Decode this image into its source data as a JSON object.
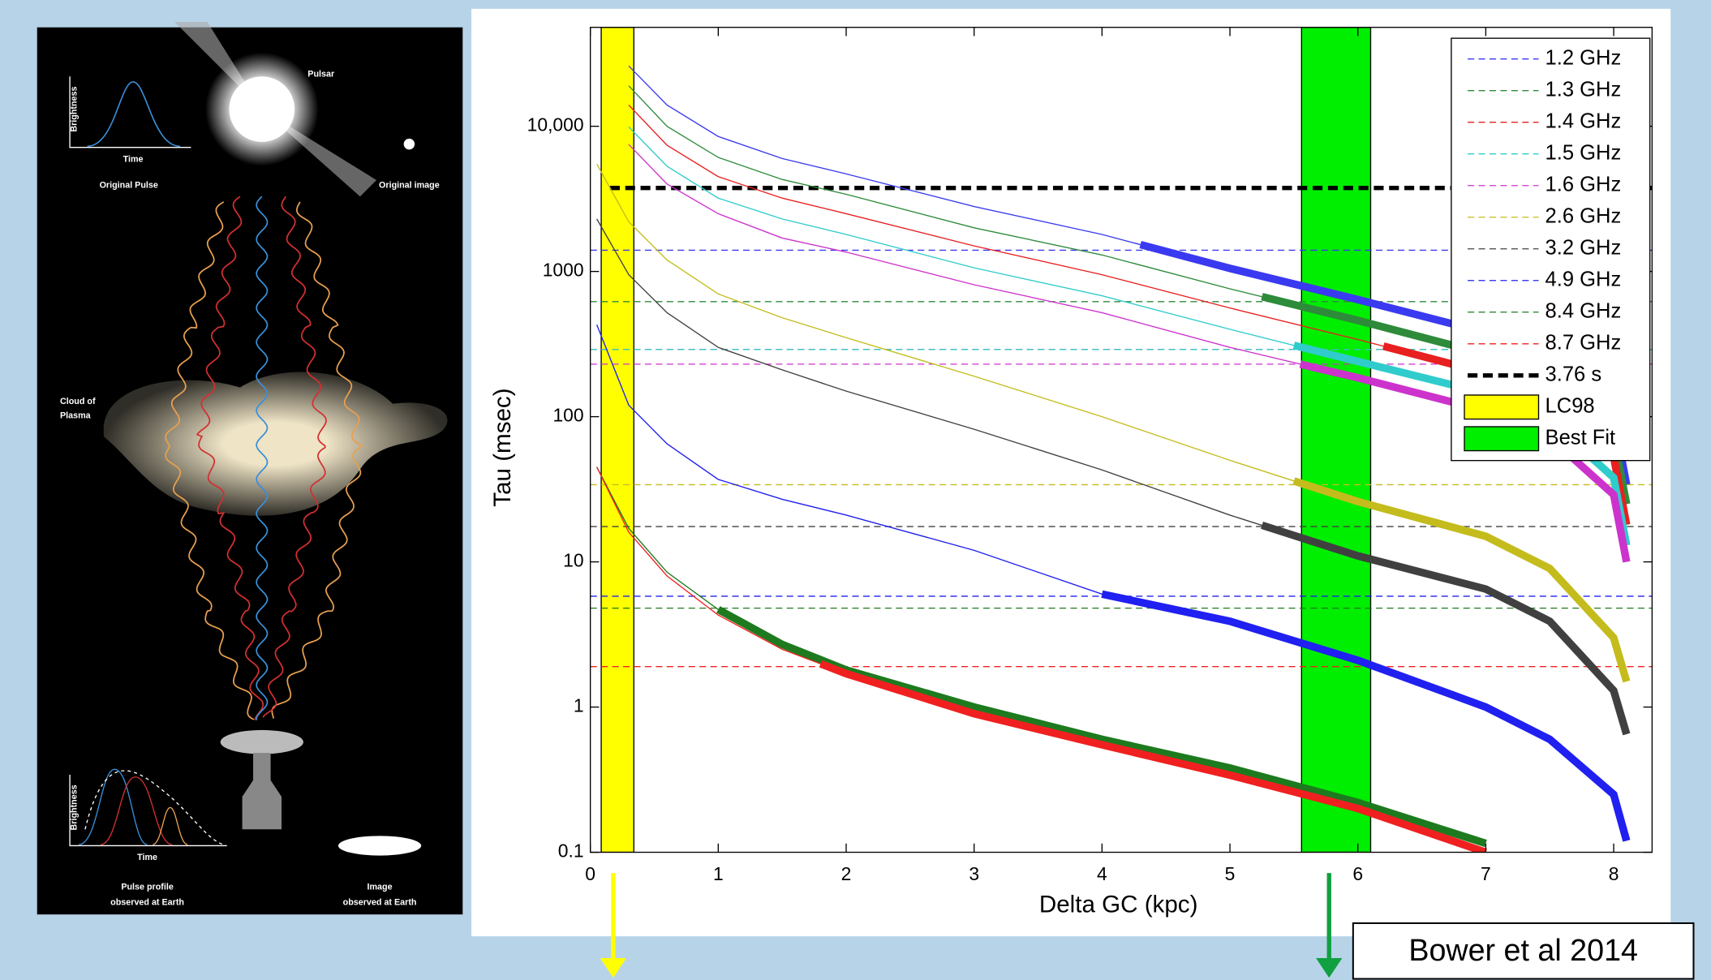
{
  "chart_data": {
    "type": "line",
    "x_label": "Delta GC (kpc)",
    "y_label": "Tau (msec)",
    "log_y": true,
    "legend": "upper right",
    "x": [
      0.05,
      0.3,
      0.6,
      1,
      1.5,
      2,
      3,
      4,
      5,
      6,
      7,
      7.5,
      8,
      8.1
    ],
    "xlim": [
      0,
      8.3
    ],
    "ylim": [
      0.1,
      48000
    ],
    "xticks": [
      0,
      1,
      2,
      3,
      4,
      5,
      6,
      7,
      8
    ],
    "yticks": [
      0.1,
      1,
      10,
      100,
      1000,
      {
        "value": 10000,
        "label": "10,000"
      }
    ],
    "series": [
      {
        "name": "1.2 GHz",
        "color": "#3a3af0",
        "level": 1400,
        "thick_from": 4.3,
        "values": [
          null,
          26000,
          14000,
          8500,
          6000,
          4700,
          2800,
          1800,
          1050,
          640,
          380,
          250,
          100,
          34
        ]
      },
      {
        "name": "1.3 GHz",
        "color": "#2e8b3a",
        "level": 620,
        "thick_from": 5.25,
        "values": [
          null,
          19000,
          10000,
          6100,
          4300,
          3400,
          2000,
          1300,
          760,
          460,
          270,
          180,
          72,
          25
        ]
      },
      {
        "name": "1.4 GHz",
        "color": "#e82020",
        "level": 290,
        "thick_from": 6.2,
        "values": [
          null,
          14000,
          7400,
          4500,
          3200,
          2500,
          1500,
          950,
          560,
          340,
          200,
          130,
          53,
          18
        ]
      },
      {
        "name": "1.5 GHz",
        "color": "#30cccc",
        "level": 290,
        "thick_from": 5.5,
        "values": [
          null,
          9900,
          5300,
          3200,
          2300,
          1800,
          1060,
          680,
          400,
          240,
          145,
          95,
          38,
          13
        ]
      },
      {
        "name": "1.6 GHz",
        "color": "#cc33cc",
        "level": 230,
        "thick_from": 5.55,
        "values": [
          null,
          7500,
          4000,
          2500,
          1700,
          1360,
          810,
          520,
          300,
          185,
          110,
          72,
          29,
          10
        ]
      },
      {
        "name": "2.6 GHz",
        "color": "#c4bc1c",
        "level": 34,
        "thick_from": 5.5,
        "values": [
          5500,
          2200,
          1200,
          700,
          480,
          350,
          190,
          100,
          50,
          26,
          15,
          9,
          3,
          1.5
        ]
      },
      {
        "name": "3.2 GHz",
        "color": "#404040",
        "level": 17.5,
        "thick_from": 5.25,
        "values": [
          2300,
          950,
          520,
          300,
          210,
          150,
          82,
          43,
          21,
          11,
          6.5,
          3.9,
          1.3,
          0.65
        ]
      },
      {
        "name": "4.9 GHz",
        "color": "#2020f0",
        "level": 5.8,
        "thick_from": 4.0,
        "values": [
          430,
          120,
          65,
          37,
          27,
          21,
          12,
          6,
          3.9,
          2.1,
          1.0,
          0.6,
          0.25,
          0.12
        ]
      },
      {
        "name": "8.4 GHz",
        "color": "#1e7a1e",
        "level": 4.8,
        "thick_from": 1.0,
        "values": [
          45,
          17,
          8.5,
          4.7,
          2.7,
          1.8,
          1.0,
          0.6,
          0.38,
          0.22,
          0.115,
          null,
          null,
          null
        ]
      },
      {
        "name": "8.7 GHz",
        "color": "#f02020",
        "level": 1.9,
        "thick_from": 1.8,
        "values": [
          45,
          16,
          8,
          4.3,
          2.5,
          1.7,
          0.9,
          0.55,
          0.34,
          0.2,
          0.1,
          null,
          null,
          null
        ]
      }
    ],
    "reference_line": {
      "name": "3.76 s",
      "value": 3760,
      "color": "#000000"
    },
    "bands": [
      {
        "name": "LC98",
        "color": "#ffff00",
        "x": [
          0.085,
          0.34
        ]
      },
      {
        "name": "Best Fit",
        "color": "#00ee00",
        "x": [
          5.56,
          6.1
        ]
      }
    ]
  },
  "illustration": {
    "pulsar": "Pulsar",
    "brightness_top": "Brightness",
    "time_top": "Time",
    "original_pulse": "Original Pulse",
    "original_image": "Original image",
    "cloud_label": [
      "Cloud of",
      "Plasma"
    ],
    "brightness_bottom": "Brightness",
    "time_bottom": "Time",
    "pulse_profile": [
      "Pulse profile",
      "observed at Earth"
    ],
    "image_observed": [
      "Image",
      "observed at Earth"
    ]
  },
  "citation": "Bower et al 2014"
}
